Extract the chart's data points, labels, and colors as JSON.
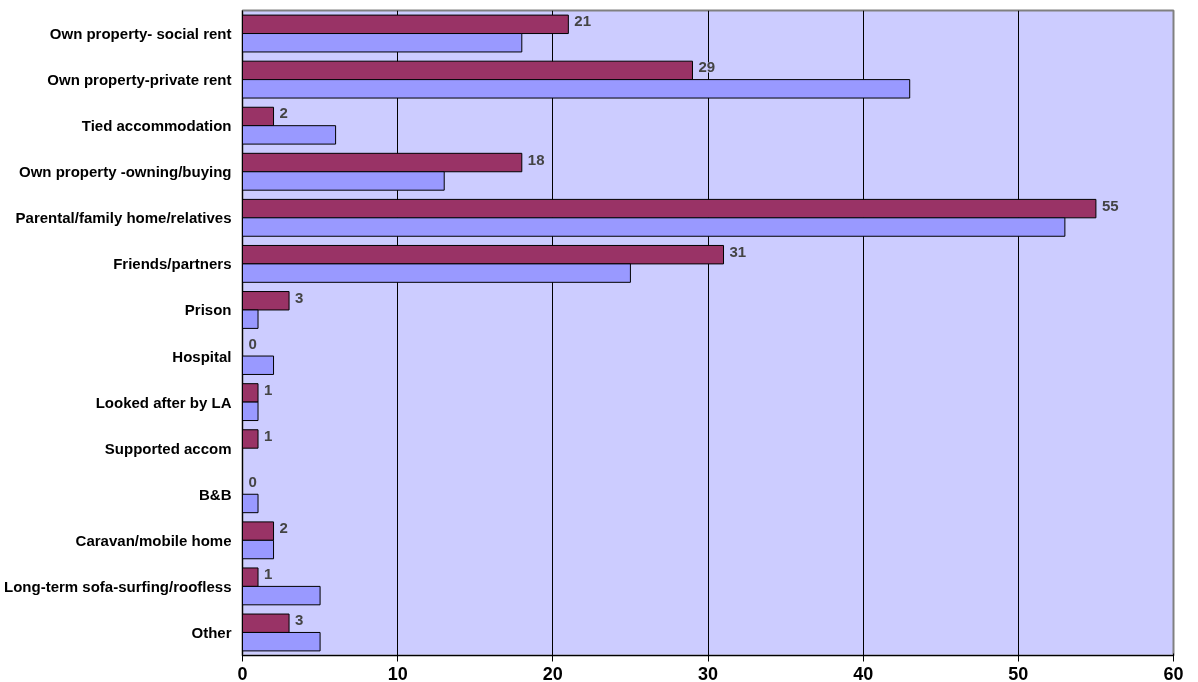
{
  "chart_data": {
    "type": "bar",
    "orientation": "horizontal",
    "categories": [
      "Own property- social rent",
      "Own property-private rent",
      "Tied accommodation",
      "Own property -owning/buying",
      "Parental/family home/relatives",
      "Friends/partners",
      "Prison",
      "Hospital",
      "Looked after by LA",
      "Supported accom",
      "B&B",
      "Caravan/mobile home",
      "Long-term sofa-surfing/roofless",
      "Other"
    ],
    "series": [
      {
        "color": "#993366",
        "values": [
          21,
          29,
          2,
          18,
          55,
          31,
          3,
          0,
          1,
          1,
          0,
          2,
          1,
          3
        ],
        "value_labels": [
          "21",
          "29",
          "2",
          "18",
          "55",
          "31",
          "3",
          "0",
          "1",
          "1",
          "0",
          "2",
          "1",
          "3"
        ]
      },
      {
        "color": "#9999ff",
        "values": [
          18,
          43,
          6,
          13,
          53,
          25,
          1,
          2,
          1,
          0,
          1,
          2,
          5,
          5
        ]
      }
    ],
    "xlim": [
      0,
      60
    ],
    "xticks": [
      0,
      10,
      20,
      30,
      40,
      50,
      60
    ],
    "grid": "x"
  }
}
